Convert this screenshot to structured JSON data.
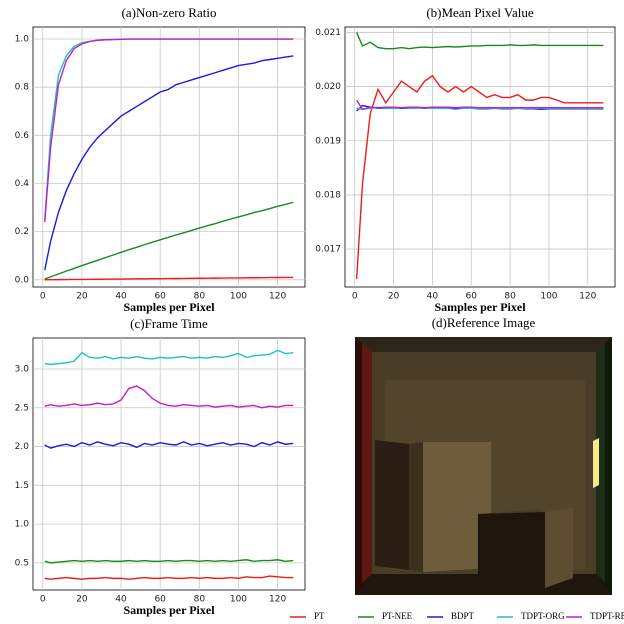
{
  "chart_data": [
    {
      "type": "line",
      "title": "(a)Non-zero Ratio",
      "xlabel": "Samples per Pixel",
      "grid": true,
      "x": [
        1,
        4,
        8,
        12,
        16,
        20,
        24,
        28,
        32,
        36,
        40,
        44,
        48,
        52,
        56,
        60,
        64,
        68,
        72,
        76,
        80,
        84,
        88,
        92,
        96,
        100,
        104,
        108,
        112,
        116,
        120,
        124,
        128
      ],
      "xlim": [
        -5,
        134
      ],
      "xticks": [
        0,
        20,
        40,
        60,
        80,
        100,
        120
      ],
      "ylim": [
        -0.03,
        1.05
      ],
      "yticks": [
        {
          "value": 0,
          "label": "0.0"
        },
        0.2,
        0.4,
        0.6,
        0.8,
        {
          "value": 1,
          "label": "1.0"
        }
      ],
      "series": [
        {
          "values": [
            0.0001,
            0.0003,
            0.0006,
            0.0009,
            0.0013,
            0.0016,
            0.0019,
            0.0022,
            0.0025,
            0.0028,
            0.0031,
            0.0034,
            0.0038,
            0.0041,
            0.0044,
            0.0047,
            0.005,
            0.0053,
            0.0056,
            0.0059,
            0.0063,
            0.0066,
            0.0069,
            0.0072,
            0.0075,
            0.0078,
            0.0081,
            0.0084,
            0.0088,
            0.0091,
            0.0094,
            0.0097,
            0.01
          ]
        },
        {
          "values": [
            0.003,
            0.012,
            0.024,
            0.036,
            0.047,
            0.059,
            0.07,
            0.081,
            0.092,
            0.103,
            0.114,
            0.125,
            0.135,
            0.146,
            0.156,
            0.166,
            0.176,
            0.186,
            0.195,
            0.205,
            0.215,
            0.224,
            0.233,
            0.243,
            0.252,
            0.261,
            0.27,
            0.279,
            0.287,
            0.296,
            0.305,
            0.313,
            0.322
          ]
        },
        {
          "values": [
            0.04,
            0.16,
            0.28,
            0.37,
            0.44,
            0.5,
            0.55,
            0.59,
            0.62,
            0.65,
            0.68,
            0.7,
            0.72,
            0.74,
            0.76,
            0.78,
            0.79,
            0.81,
            0.82,
            0.83,
            0.84,
            0.85,
            0.86,
            0.87,
            0.88,
            0.89,
            0.895,
            0.9,
            0.91,
            0.915,
            0.92,
            0.925,
            0.93
          ]
        },
        {
          "values": [
            0.25,
            0.6,
            0.85,
            0.93,
            0.97,
            0.985,
            0.99,
            0.995,
            0.997,
            0.998,
            0.999,
            1,
            1,
            1,
            1,
            1,
            1,
            1,
            1,
            1,
            1,
            1,
            1,
            1,
            1,
            1,
            1,
            1,
            1,
            1,
            1,
            1,
            1
          ]
        },
        {
          "values": [
            0.24,
            0.55,
            0.81,
            0.91,
            0.96,
            0.98,
            0.99,
            0.995,
            0.997,
            0.998,
            0.999,
            1,
            1,
            1,
            1,
            1,
            1,
            1,
            1,
            1,
            1,
            1,
            1,
            1,
            1,
            1,
            1,
            1,
            1,
            1,
            1,
            1,
            1
          ]
        }
      ]
    },
    {
      "type": "line",
      "title": "(b)Mean Pixel Value",
      "xlabel": "Samples per Pixel",
      "grid": true,
      "x": [
        1,
        4,
        8,
        12,
        16,
        20,
        24,
        28,
        32,
        36,
        40,
        44,
        48,
        52,
        56,
        60,
        64,
        68,
        72,
        76,
        80,
        84,
        88,
        92,
        96,
        100,
        104,
        108,
        112,
        116,
        120,
        124,
        128
      ],
      "xlim": [
        -5,
        134
      ],
      "xticks": [
        0,
        20,
        40,
        60,
        80,
        100,
        120
      ],
      "ylim": [
        0.0163,
        0.0211
      ],
      "yticks": [
        0.017,
        0.018,
        0.019,
        {
          "value": 0.02,
          "label": "0.020"
        },
        0.021
      ],
      "series": [
        {
          "values": [
            0.01645,
            0.0182,
            0.0195,
            0.01995,
            0.0197,
            0.0199,
            0.0201,
            0.02,
            0.0199,
            0.0201,
            0.0202,
            0.02,
            0.0199,
            0.02,
            0.0199,
            0.02,
            0.0199,
            0.0198,
            0.01985,
            0.0198,
            0.0198,
            0.01985,
            0.01975,
            0.01975,
            0.0198,
            0.0198,
            0.01975,
            0.0197,
            0.0197,
            0.0197,
            0.0197,
            0.0197,
            0.0197
          ]
        },
        {
          "values": [
            0.021,
            0.02075,
            0.02082,
            0.02072,
            0.0207,
            0.0207,
            0.02072,
            0.0207,
            0.02072,
            0.02073,
            0.02072,
            0.02073,
            0.02074,
            0.02073,
            0.02074,
            0.02075,
            0.02075,
            0.02076,
            0.02076,
            0.02076,
            0.02077,
            0.02076,
            0.02076,
            0.02077,
            0.02076,
            0.02076,
            0.02076,
            0.02076,
            0.02076,
            0.02076,
            0.02076,
            0.02076,
            0.02076
          ]
        },
        {
          "values": [
            0.01955,
            0.01965,
            0.01962,
            0.0196,
            0.0196,
            0.01961,
            0.0196,
            0.0196,
            0.01961,
            0.0196,
            0.01961,
            0.0196,
            0.0196,
            0.01959,
            0.0196,
            0.0196,
            0.01959,
            0.01959,
            0.0196,
            0.01959,
            0.01959,
            0.0196,
            0.01959,
            0.01959,
            0.01958,
            0.01959,
            0.01959,
            0.01959,
            0.01959,
            0.01959,
            0.01959,
            0.01959,
            0.01959
          ]
        },
        {
          "values": [
            0.0196,
            0.01958,
            0.0196,
            0.01961,
            0.0196,
            0.0196,
            0.01961,
            0.0196,
            0.0196,
            0.01961,
            0.0196,
            0.0196,
            0.0196,
            0.01961,
            0.0196,
            0.0196,
            0.0196,
            0.0196,
            0.0196,
            0.0196,
            0.0196,
            0.0196,
            0.0196,
            0.0196,
            0.0196,
            0.0196,
            0.0196,
            0.0196,
            0.0196,
            0.0196,
            0.0196,
            0.0196,
            0.0196
          ]
        },
        {
          "values": [
            0.01975,
            0.01958,
            0.01962,
            0.01961,
            0.01962,
            0.01962,
            0.01961,
            0.01962,
            0.01962,
            0.01961,
            0.01962,
            0.01962,
            0.01962,
            0.01961,
            0.01962,
            0.01962,
            0.01961,
            0.01961,
            0.01961,
            0.01961,
            0.01961,
            0.01961,
            0.01961,
            0.01961,
            0.01961,
            0.01961,
            0.01961,
            0.01961,
            0.01961,
            0.01961,
            0.01961,
            0.01961,
            0.01961
          ]
        }
      ]
    },
    {
      "type": "line",
      "title": "(c)Frame Time",
      "xlabel": "Samples per Pixel",
      "grid": true,
      "x": [
        1,
        4,
        8,
        12,
        16,
        20,
        24,
        28,
        32,
        36,
        40,
        44,
        48,
        52,
        56,
        60,
        64,
        68,
        72,
        76,
        80,
        84,
        88,
        92,
        96,
        100,
        104,
        108,
        112,
        116,
        120,
        124,
        128
      ],
      "xlim": [
        -5,
        134
      ],
      "xticks": [
        0,
        20,
        40,
        60,
        80,
        100,
        120
      ],
      "ylim": [
        0.15,
        3.4
      ],
      "yticks": [
        0.5,
        {
          "value": 1,
          "label": "1.0"
        },
        1.5,
        {
          "value": 2,
          "label": "2.0"
        },
        2.5,
        {
          "value": 3,
          "label": "3.0"
        }
      ],
      "series": [
        {
          "values": [
            0.3,
            0.29,
            0.3,
            0.31,
            0.3,
            0.29,
            0.3,
            0.3,
            0.31,
            0.3,
            0.3,
            0.29,
            0.3,
            0.31,
            0.3,
            0.3,
            0.31,
            0.3,
            0.3,
            0.31,
            0.3,
            0.31,
            0.3,
            0.3,
            0.31,
            0.3,
            0.32,
            0.31,
            0.31,
            0.33,
            0.32,
            0.31,
            0.31
          ]
        },
        {
          "values": [
            0.52,
            0.5,
            0.51,
            0.52,
            0.53,
            0.52,
            0.53,
            0.52,
            0.53,
            0.52,
            0.52,
            0.53,
            0.52,
            0.53,
            0.52,
            0.52,
            0.53,
            0.52,
            0.53,
            0.53,
            0.52,
            0.53,
            0.52,
            0.53,
            0.52,
            0.53,
            0.54,
            0.52,
            0.53,
            0.53,
            0.54,
            0.52,
            0.53
          ]
        },
        {
          "values": [
            2.02,
            1.98,
            2.01,
            2.03,
            2,
            2.05,
            2.02,
            2.06,
            2.03,
            2.01,
            2.05,
            2.03,
            1.99,
            2.04,
            2.02,
            2.05,
            2.03,
            2.02,
            2.06,
            2.02,
            2.04,
            2.01,
            2.03,
            2.05,
            2.02,
            2.04,
            2.03,
            2,
            2.05,
            2.02,
            2.06,
            2.03,
            2.04
          ]
        },
        {
          "values": [
            3.07,
            3.06,
            3.07,
            3.08,
            3.1,
            3.21,
            3.15,
            3.14,
            3.16,
            3.13,
            3.15,
            3.14,
            3.16,
            3.14,
            3.13,
            3.15,
            3.14,
            3.15,
            3.16,
            3.14,
            3.15,
            3.14,
            3.16,
            3.15,
            3.17,
            3.2,
            3.15,
            3.17,
            3.18,
            3.19,
            3.24,
            3.2,
            3.21
          ]
        },
        {
          "values": [
            2.52,
            2.54,
            2.52,
            2.53,
            2.55,
            2.53,
            2.54,
            2.56,
            2.54,
            2.55,
            2.6,
            2.75,
            2.78,
            2.72,
            2.62,
            2.56,
            2.53,
            2.52,
            2.54,
            2.53,
            2.52,
            2.53,
            2.51,
            2.52,
            2.53,
            2.51,
            2.52,
            2.53,
            2.5,
            2.52,
            2.51,
            2.53,
            2.53
          ]
        }
      ]
    },
    {
      "type": "image",
      "title": "(d)Reference Image"
    }
  ],
  "legend": [
    {
      "name": "PT",
      "color": "#ee1c1c"
    },
    {
      "name": "PT-NEE",
      "color": "#1a8a1a"
    },
    {
      "name": "BDPT",
      "color": "#1b1bdd"
    },
    {
      "name": "TDPT-ORG",
      "color": "#1fc2c2"
    },
    {
      "name": "TDPT-RE",
      "color": "#c21fc2"
    }
  ]
}
